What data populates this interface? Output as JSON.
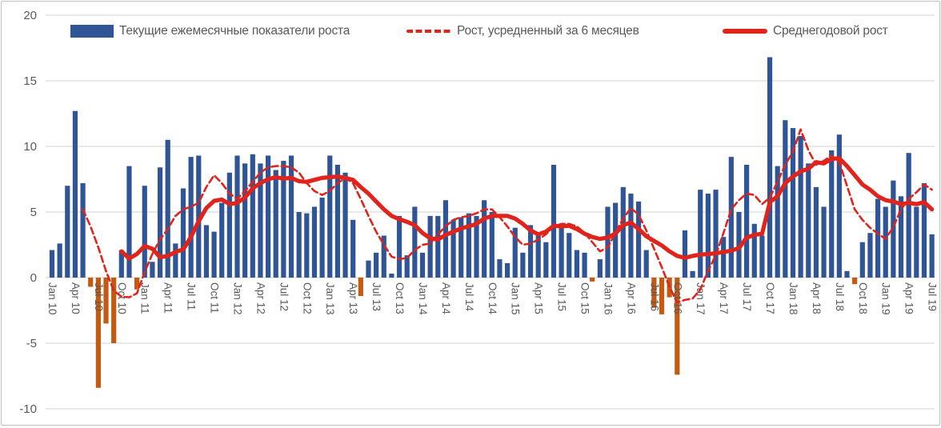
{
  "legend": {
    "items": [
      {
        "label": "Текущие ежемесячные показатели роста"
      },
      {
        "label": "Рост, усредненный за 6 месяцев"
      },
      {
        "label": "Среднегодовой рост"
      }
    ]
  },
  "colors": {
    "bar_positive": "#2f5597",
    "bar_negative": "#c45911",
    "line_red": "#e0241c",
    "grid": "#d9d9d9",
    "axis_text": "#595959"
  },
  "chart_data": {
    "type": "bar",
    "title": "",
    "xlabel": "",
    "ylabel": "",
    "ylim": [
      -10,
      20
    ],
    "y_ticks": [
      20,
      15,
      10,
      5,
      0,
      -5,
      -10
    ],
    "grid": "horizontal",
    "legend_position": "top",
    "x_label_every": 3,
    "categories": [
      "Jan 10",
      "Feb 10",
      "Mar 10",
      "Apr 10",
      "May 10",
      "Jun 10",
      "Jul 10",
      "Aug 10",
      "Sep 10",
      "Oct 10",
      "Nov 10",
      "Dec 10",
      "Jan 11",
      "Feb 11",
      "Mar 11",
      "Apr 11",
      "May 11",
      "Jun 11",
      "Jul 11",
      "Aug 11",
      "Sep 11",
      "Oct 11",
      "Nov 11",
      "Dec 11",
      "Jan 12",
      "Feb 12",
      "Mar 12",
      "Apr 12",
      "May 12",
      "Jun 12",
      "Jul 12",
      "Aug 12",
      "Sep 12",
      "Oct 12",
      "Nov 12",
      "Dec 12",
      "Jan 13",
      "Feb 13",
      "Mar 13",
      "Apr 13",
      "May 13",
      "Jun 13",
      "Jul 13",
      "Aug 13",
      "Sep 13",
      "Oct 13",
      "Nov 13",
      "Dec 13",
      "Jan 14",
      "Feb 14",
      "Mar 14",
      "Apr 14",
      "May 14",
      "Jun 14",
      "Jul 14",
      "Aug 14",
      "Sep 14",
      "Oct 14",
      "Nov 14",
      "Dec 14",
      "Jan 15",
      "Feb 15",
      "Mar 15",
      "Apr 15",
      "May 15",
      "Jun 15",
      "Jul 15",
      "Aug 15",
      "Sep 15",
      "Oct 15",
      "Nov 15",
      "Dec 15",
      "Jan 16",
      "Feb 16",
      "Mar 16",
      "Apr 16",
      "May 16",
      "Jun 16",
      "Jul 16",
      "Aug 16",
      "Sep 16",
      "Oct 16",
      "Nov 16",
      "Dec 16",
      "Jan 17",
      "Feb 17",
      "Mar 17",
      "Apr 17",
      "May 17",
      "Jun 17",
      "Jul 17",
      "Aug 17",
      "Sep 17",
      "Oct 17",
      "Nov 17",
      "Dec 17",
      "Jan 18",
      "Feb 18",
      "Mar 18",
      "Apr 18",
      "May 18",
      "Jun 18",
      "Jul 18",
      "Aug 18",
      "Sep 18",
      "Oct 18",
      "Nov 18",
      "Dec 18",
      "Jan 19",
      "Feb 19",
      "Mar 19",
      "Apr 19",
      "May 19",
      "Jun 19",
      "Jul 19"
    ],
    "series": [
      {
        "name": "Текущие ежемесячные показатели роста",
        "kind": "bar",
        "values": [
          2.1,
          2.6,
          7.0,
          12.7,
          7.2,
          -0.7,
          -8.4,
          -3.5,
          -5.0,
          2.1,
          8.5,
          -0.9,
          7.0,
          1.2,
          8.4,
          10.5,
          2.6,
          6.8,
          9.2,
          9.3,
          4.0,
          3.5,
          5.7,
          8.0,
          9.3,
          8.7,
          9.4,
          8.7,
          9.3,
          8.2,
          8.9,
          9.3,
          5.0,
          4.9,
          5.4,
          6.1,
          9.3,
          8.6,
          8.0,
          4.4,
          -1.4,
          1.3,
          1.9,
          3.2,
          0.3,
          4.7,
          1.7,
          5.4,
          1.9,
          4.7,
          4.7,
          5.9,
          4.4,
          4.6,
          4.9,
          4.7,
          5.9,
          5.0,
          1.4,
          1.1,
          3.8,
          1.9,
          4.0,
          3.4,
          2.7,
          8.6,
          4.0,
          3.4,
          2.1,
          1.9,
          -0.3,
          1.4,
          5.4,
          5.7,
          6.9,
          6.4,
          5.8,
          2.1,
          -2.3,
          -2.8,
          -1.5,
          -7.4,
          3.6,
          0.5,
          6.7,
          6.4,
          6.7,
          3.1,
          9.2,
          5.0,
          8.6,
          4.1,
          3.2,
          16.8,
          8.5,
          12.0,
          11.4,
          10.8,
          8.7,
          6.9,
          5.4,
          9.7,
          10.9,
          0.5,
          -0.5,
          2.7,
          3.4,
          6.0,
          5.4,
          7.4,
          6.2,
          9.5,
          5.4,
          7.2,
          3.3
        ]
      },
      {
        "name": "Рост, усредненный за 6 месяцев",
        "kind": "dashed-line",
        "values": [
          null,
          null,
          null,
          null,
          5.2,
          3.9,
          2.3,
          0.5,
          -1.0,
          -1.45,
          -1.5,
          -1.2,
          0.4,
          1.8,
          2.9,
          3.7,
          4.7,
          5.2,
          5.4,
          5.7,
          6.9,
          7.8,
          7.2,
          6.4,
          6.0,
          6.6,
          7.3,
          8.0,
          8.4,
          8.5,
          8.5,
          8.4,
          8.0,
          7.2,
          6.6,
          6.3,
          6.6,
          7.2,
          7.6,
          7.2,
          6.0,
          4.7,
          3.5,
          2.5,
          1.6,
          1.4,
          1.5,
          2.1,
          2.5,
          2.6,
          3.3,
          3.9,
          4.4,
          4.6,
          4.7,
          4.9,
          5.2,
          5.2,
          4.6,
          3.9,
          3.1,
          2.5,
          2.6,
          2.9,
          3.3,
          3.9,
          4.1,
          4.1,
          3.9,
          3.4,
          2.7,
          2.0,
          2.3,
          3.4,
          4.5,
          5.3,
          4.8,
          3.6,
          2.2,
          0.8,
          -0.7,
          -1.9,
          -1.7,
          -1.6,
          -0.9,
          0.5,
          1.7,
          3.4,
          5.2,
          5.9,
          6.4,
          6.3,
          5.6,
          6.1,
          7.3,
          8.6,
          9.6,
          11.3,
          9.7,
          8.6,
          8.9,
          9.3,
          8.8,
          7.0,
          5.2,
          4.4,
          3.8,
          3.35,
          2.95,
          3.85,
          5.2,
          6.0,
          6.5,
          7.1,
          6.7
        ]
      },
      {
        "name": "Среднегодовой рост",
        "kind": "thick-line",
        "values": [
          null,
          null,
          null,
          null,
          null,
          null,
          null,
          null,
          null,
          2.0,
          1.45,
          1.8,
          2.4,
          2.2,
          1.55,
          1.65,
          1.95,
          2.15,
          3.1,
          4.3,
          5.3,
          5.85,
          5.95,
          5.6,
          5.7,
          6.1,
          6.8,
          7.2,
          7.5,
          7.65,
          7.55,
          7.6,
          7.35,
          7.3,
          7.45,
          7.6,
          7.65,
          7.7,
          7.6,
          7.45,
          6.9,
          6.4,
          5.8,
          5.2,
          4.7,
          4.45,
          4.25,
          4.0,
          3.4,
          3.0,
          2.9,
          3.25,
          3.5,
          3.75,
          3.9,
          4.1,
          4.5,
          4.7,
          4.7,
          4.7,
          4.5,
          4.1,
          3.6,
          3.3,
          3.5,
          3.95,
          3.9,
          3.95,
          3.7,
          3.35,
          3.1,
          2.95,
          3.05,
          3.35,
          4.0,
          4.2,
          3.7,
          3.15,
          2.8,
          2.45,
          2.0,
          1.65,
          1.5,
          1.65,
          1.75,
          1.8,
          1.85,
          1.95,
          2.05,
          2.25,
          3.05,
          3.25,
          3.35,
          5.75,
          6.2,
          7.2,
          7.7,
          8.1,
          8.3,
          8.8,
          8.7,
          9.05,
          9.1,
          8.5,
          7.8,
          7.1,
          6.7,
          6.2,
          5.9,
          5.8,
          5.6,
          5.7,
          5.6,
          5.75,
          5.2
        ]
      }
    ]
  }
}
